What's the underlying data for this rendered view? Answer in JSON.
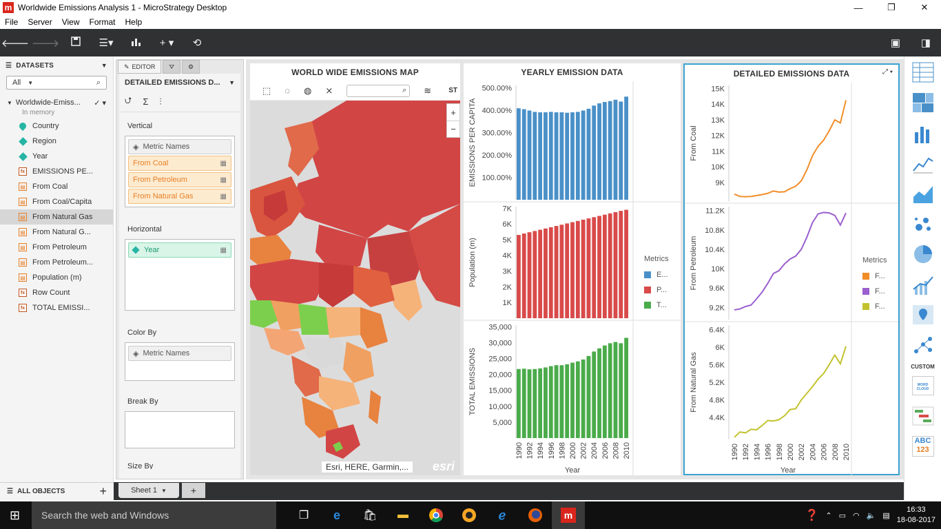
{
  "window": {
    "title": "Worldwide Emissions Analysis 1 - MicroStrategy Desktop",
    "logo": "m",
    "min": "—",
    "max": "❐",
    "close": "✕"
  },
  "menu": [
    "File",
    "Server",
    "View",
    "Format",
    "Help"
  ],
  "datasets": {
    "header": "DATASETS",
    "filter": "All",
    "dataset_name": "Worldwide-Emiss...",
    "dataset_status": "In memory",
    "objects": [
      {
        "label": "Country",
        "kind": "geo"
      },
      {
        "label": "Region",
        "kind": "attr"
      },
      {
        "label": "Year",
        "kind": "attr"
      },
      {
        "label": "EMISSIONS PE...",
        "kind": "fx"
      },
      {
        "label": "From Coal",
        "kind": "metric"
      },
      {
        "label": "From Coal/Capita",
        "kind": "metric"
      },
      {
        "label": "From Natural Gas",
        "kind": "metric"
      },
      {
        "label": "From Natural G...",
        "kind": "metric"
      },
      {
        "label": "From Petroleum",
        "kind": "metric"
      },
      {
        "label": "From Petroleum...",
        "kind": "metric"
      },
      {
        "label": "Population (m)",
        "kind": "metric"
      },
      {
        "label": "Row Count",
        "kind": "fx"
      },
      {
        "label": "TOTAL EMISSI...",
        "kind": "fx"
      }
    ],
    "all_objects": "ALL OBJECTS"
  },
  "editor": {
    "tab_editor": "EDITOR",
    "viz_name": "DETAILED EMISSIONS D...",
    "vertical_label": "Vertical",
    "vertical": [
      "Metric Names",
      "From Coal",
      "From Petroleum",
      "From Natural Gas"
    ],
    "horizontal_label": "Horizontal",
    "horizontal": [
      "Year"
    ],
    "color_label": "Color By",
    "color": [
      "Metric Names"
    ],
    "break_label": "Break By",
    "size_label": "Size By"
  },
  "map": {
    "title": "WORLD WIDE EMISSIONS MAP",
    "attribution": "Esri, HERE, Garmin,...",
    "esri": "esri",
    "zoom_in": "+",
    "zoom_out": "−",
    "st": "ST"
  },
  "yearly": {
    "title": "YEARLY EMISSION DATA",
    "legend_title": "Metrics",
    "legend": [
      {
        "label": "E...",
        "color": "#4a90c8"
      },
      {
        "label": "P...",
        "color": "#d94a4a"
      },
      {
        "label": "T...",
        "color": "#4aab4a"
      }
    ],
    "xlabel": "Year"
  },
  "detailed": {
    "title": "DETAILED EMISSIONS DATA",
    "legend_title": "Metrics",
    "legend": [
      {
        "label": "F...",
        "color": "#f28c28"
      },
      {
        "label": "F...",
        "color": "#9b5fcf"
      },
      {
        "label": "F...",
        "color": "#c2c22e"
      }
    ],
    "xlabel": "Year"
  },
  "chart_data": [
    {
      "type": "bar",
      "title": "YEARLY EMISSION DATA",
      "x": [
        1990,
        1991,
        1992,
        1993,
        1994,
        1995,
        1996,
        1997,
        1998,
        1999,
        2000,
        2001,
        2002,
        2003,
        2004,
        2005,
        2006,
        2007,
        2008,
        2009,
        2010
      ],
      "series": [
        {
          "name": "EMISSIONS PER CAPITA",
          "ylabel": "EMISSIONS PER CAPITA",
          "color": "#4a90c8",
          "values": [
            408,
            404,
            398,
            392,
            390,
            390,
            392,
            390,
            390,
            388,
            390,
            392,
            398,
            406,
            420,
            430,
            436,
            440,
            446,
            438,
            460
          ],
          "ylim": [
            0,
            510
          ],
          "ticks": [
            "100.00%",
            "200.00%",
            "300.00%",
            "400.00%",
            "500.00%"
          ]
        },
        {
          "name": "Population (m)",
          "ylabel": "Population (m)",
          "color": "#d94a4a",
          "values": [
            5300,
            5390,
            5470,
            5550,
            5630,
            5710,
            5790,
            5870,
            5950,
            6030,
            6110,
            6190,
            6270,
            6350,
            6430,
            6510,
            6590,
            6670,
            6750,
            6830,
            6900
          ],
          "ylim": [
            0,
            7100
          ],
          "ticks": [
            "1K",
            "2K",
            "3K",
            "4K",
            "5K",
            "6K",
            "7K"
          ]
        },
        {
          "name": "TOTAL EMISSIONS",
          "ylabel": "TOTAL EMISSIONS",
          "color": "#4aab4a",
          "values": [
            21700,
            21800,
            21600,
            21700,
            21900,
            22200,
            22600,
            22900,
            22900,
            23200,
            23700,
            24100,
            24700,
            25800,
            27200,
            28200,
            29100,
            29800,
            30200,
            29800,
            31500
          ],
          "ylim": [
            0,
            35500
          ],
          "ticks": [
            "5,000",
            "10,000",
            "15,000",
            "20,000",
            "25,000",
            "30,000",
            "35,000"
          ]
        }
      ]
    },
    {
      "type": "line",
      "title": "DETAILED EMISSIONS DATA",
      "x": [
        1990,
        1991,
        1992,
        1993,
        1994,
        1995,
        1996,
        1997,
        1998,
        1999,
        2000,
        2001,
        2002,
        2003,
        2004,
        2005,
        2006,
        2007,
        2008,
        2009,
        2010
      ],
      "series": [
        {
          "name": "From Coal",
          "ylabel": "From Coal",
          "color": "#f28c28",
          "values": [
            8250,
            8100,
            8080,
            8100,
            8160,
            8220,
            8300,
            8450,
            8380,
            8400,
            8600,
            8750,
            9100,
            9800,
            10700,
            11300,
            11700,
            12300,
            13000,
            12800,
            14250
          ],
          "ylim": [
            7800,
            15200
          ],
          "ticks": [
            "9K",
            "10K",
            "11K",
            "12K",
            "13K",
            "14K",
            "15K"
          ],
          "tickvals": [
            9000,
            10000,
            11000,
            12000,
            13000,
            14000,
            15000
          ]
        },
        {
          "name": "From Petroleum",
          "ylabel": "From Petroleum",
          "color": "#9b5fcf",
          "values": [
            9150,
            9170,
            9220,
            9250,
            9380,
            9520,
            9700,
            9900,
            9960,
            10100,
            10200,
            10260,
            10400,
            10650,
            10950,
            11130,
            11160,
            11150,
            11100,
            10900,
            11150
          ],
          "ylim": [
            8950,
            11280
          ],
          "ticks": [
            "9.2K",
            "9.6K",
            "10K",
            "10.4K",
            "10.8K",
            "11.2K"
          ],
          "tickvals": [
            9200,
            9600,
            10000,
            10400,
            10800,
            11200
          ]
        },
        {
          "name": "From Natural Gas",
          "ylabel": "From Natural Gas",
          "color": "#c2c22e",
          "values": [
            3950,
            4070,
            4050,
            4130,
            4120,
            4220,
            4330,
            4320,
            4350,
            4440,
            4580,
            4600,
            4800,
            4950,
            5100,
            5270,
            5400,
            5600,
            5820,
            5620,
            6020
          ],
          "ylim": [
            3900,
            6500
          ],
          "ticks": [
            "4.4K",
            "4.8K",
            "5.2K",
            "5.6K",
            "6K",
            "6.4K"
          ],
          "tickvals": [
            4400,
            4800,
            5200,
            5600,
            6000,
            6400
          ]
        }
      ]
    }
  ],
  "taskbar": {
    "search": "Search the web and Windows",
    "time": "16:33",
    "date": "18-08-2017"
  },
  "sheets": {
    "tab": "Sheet 1",
    "add": "+"
  },
  "gallery": {
    "custom_label": "CUSTOM",
    "wordcloud": "WORD CLOUD",
    "abc": "ABC",
    "num": "123"
  }
}
